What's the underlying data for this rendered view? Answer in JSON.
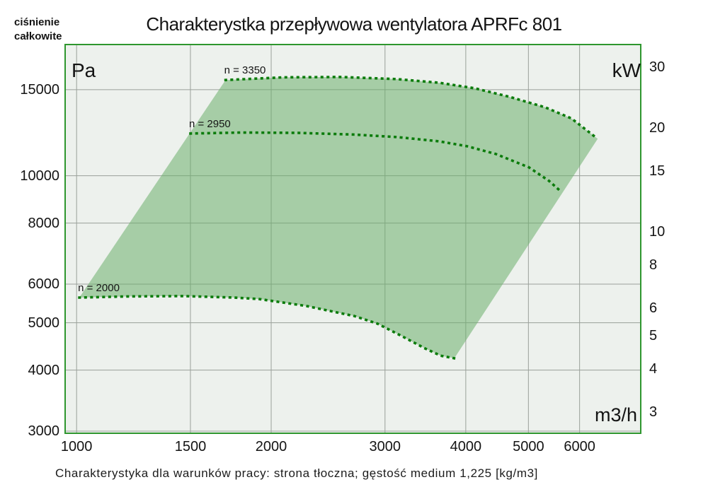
{
  "page": {
    "title": "Charakterystka przepływowa wentylatora APRFc 801",
    "pressure_label": [
      "ciśnienie",
      "całkowite"
    ],
    "caption": "Charakterystyka dla warunków pracy: strona tłoczna; gęstość medium 1,225 [kg/m3]"
  },
  "colors": {
    "plot_background": "#edf1ed",
    "plot_border": "#2e962e",
    "gridline": "#9aa09a",
    "curve_dots": "#0c7c0c",
    "region_fill": "rgba(108,175,108,0.55)",
    "text": "#1a1a1a"
  },
  "chart_data": {
    "type": "area",
    "title": "Charakterystka przepływowa wentylatora APRFc 801",
    "grid": true,
    "x_axis": {
      "label": "m3/h",
      "scale": "log",
      "range": [
        960,
        7460
      ],
      "ticks": [
        1000,
        1500,
        2000,
        3000,
        4000,
        5000,
        6000
      ]
    },
    "y_axis_left": {
      "label": "Pa",
      "scale": "log",
      "range": [
        2970,
        18560
      ],
      "ticks": [
        15000,
        10000,
        8000,
        6000,
        5000,
        4000,
        3000
      ]
    },
    "y_axis_right": {
      "label": "kW",
      "scale": "log",
      "range": [
        2.6,
        34.9
      ],
      "ticks": [
        30,
        20,
        15,
        10,
        8,
        6,
        5,
        4,
        3
      ]
    },
    "series": [
      {
        "name": "n = 3350",
        "style": "dotted",
        "points": [
          [
            1700,
            15700
          ],
          [
            2090,
            15900
          ],
          [
            2560,
            15930
          ],
          [
            3130,
            15770
          ],
          [
            3640,
            15500
          ],
          [
            4130,
            15100
          ],
          [
            4680,
            14500
          ],
          [
            5310,
            13800
          ],
          [
            5830,
            13100
          ],
          [
            6400,
            11900
          ]
        ]
      },
      {
        "name": "n = 2950",
        "style": "dotted",
        "points": [
          [
            1500,
            12200
          ],
          [
            1800,
            12260
          ],
          [
            2200,
            12240
          ],
          [
            2690,
            12140
          ],
          [
            3130,
            12000
          ],
          [
            3640,
            11760
          ],
          [
            4020,
            11490
          ],
          [
            4450,
            11080
          ],
          [
            5010,
            10400
          ],
          [
            5380,
            9760
          ],
          [
            5630,
            9250
          ]
        ]
      },
      {
        "name": "n = 2000",
        "style": "dotted",
        "points": [
          [
            1010,
            5630
          ],
          [
            1200,
            5660
          ],
          [
            1460,
            5670
          ],
          [
            1750,
            5630
          ],
          [
            1920,
            5590
          ],
          [
            2270,
            5410
          ],
          [
            2690,
            5160
          ],
          [
            2920,
            4980
          ],
          [
            3180,
            4700
          ],
          [
            3460,
            4430
          ],
          [
            3660,
            4280
          ],
          [
            3840,
            4230
          ]
        ]
      }
    ],
    "region": {
      "description": "operating envelope bounded above by n = 3350 curve, below by n = 2000 curve, with straight connecting edges"
    }
  }
}
